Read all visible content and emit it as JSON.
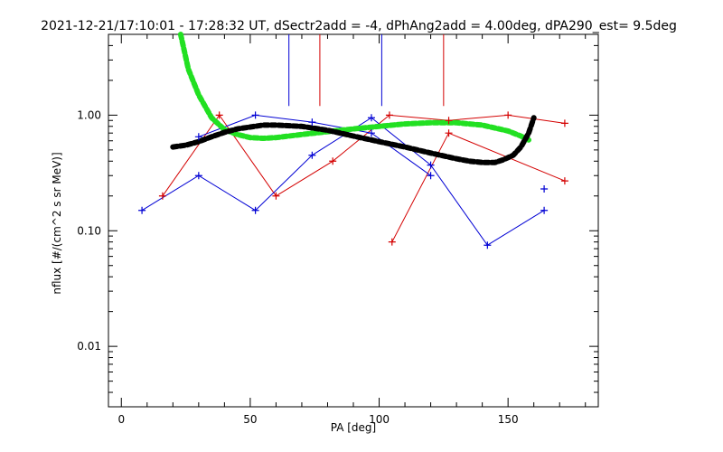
{
  "chart_data": {
    "type": "line",
    "title": "2021-12-21/17:10:01 - 17:28:32 UT, dSectr2add = -4, dPhAng2add = 4.00deg, dPA290_est=   9.5deg",
    "xlabel": "PA [deg]",
    "ylabel": "nflux [#/(cm^2 s sr MeV)]",
    "xlim": [
      -5,
      185
    ],
    "ylim": [
      0.003,
      5
    ],
    "yscale": "log",
    "xticks": [
      0,
      50,
      100,
      150
    ],
    "xtick_labels": [
      "0",
      "50",
      "100",
      "150"
    ],
    "yticks": [
      0.01,
      0.1,
      1.0
    ],
    "ytick_labels": [
      "0.01",
      "0.10",
      "1.00"
    ],
    "grid": false,
    "colors": {
      "red": "#d40000",
      "blue": "#0000d4",
      "green": "#22e022",
      "black": "#000000"
    },
    "series": [
      {
        "color": "red",
        "marker": "+",
        "x": [
          16,
          38,
          60,
          82,
          104,
          127,
          150,
          172
        ],
        "y": [
          0.2,
          1.0,
          0.2,
          0.4,
          1.0,
          0.9,
          1.0,
          0.85
        ]
      },
      {
        "color": "red",
        "marker": "+",
        "x": [
          105,
          127,
          172
        ],
        "y": [
          0.08,
          0.7,
          0.27
        ]
      },
      {
        "color": "blue",
        "marker": "+",
        "x": [
          8,
          30,
          52,
          74,
          97,
          120,
          142,
          164
        ],
        "y": [
          0.15,
          0.3,
          0.15,
          0.45,
          0.95,
          0.37,
          0.075,
          0.15
        ]
      },
      {
        "color": "blue",
        "marker": "+",
        "x": [
          30,
          52,
          74,
          97,
          120
        ],
        "y": [
          0.65,
          1.0,
          0.87,
          0.7,
          0.3
        ]
      },
      {
        "color": "blue",
        "marker": "+",
        "x": [
          164
        ],
        "y": [
          0.23
        ]
      },
      {
        "color": "green",
        "style": "thick-dashed",
        "x": [
          23,
          26,
          30,
          35,
          40,
          45,
          50,
          55,
          60,
          70,
          80,
          90,
          100,
          110,
          120,
          130,
          140,
          150,
          155,
          158
        ],
        "y": [
          5.0,
          2.5,
          1.5,
          0.95,
          0.75,
          0.68,
          0.64,
          0.63,
          0.64,
          0.68,
          0.72,
          0.76,
          0.8,
          0.84,
          0.86,
          0.86,
          0.82,
          0.73,
          0.66,
          0.61
        ]
      },
      {
        "color": "black",
        "style": "thick-dashed",
        "x": [
          20,
          25,
          30,
          35,
          40,
          45,
          50,
          55,
          60,
          70,
          80,
          90,
          100,
          110,
          120,
          130,
          135,
          140,
          145,
          148,
          152,
          155,
          158,
          160
        ],
        "y": [
          0.53,
          0.55,
          0.59,
          0.65,
          0.71,
          0.76,
          0.79,
          0.82,
          0.82,
          0.8,
          0.74,
          0.66,
          0.59,
          0.53,
          0.47,
          0.42,
          0.4,
          0.39,
          0.39,
          0.41,
          0.45,
          0.53,
          0.7,
          0.95
        ]
      }
    ],
    "vlines": [
      {
        "color": "blue",
        "x": 65,
        "y_from": 1.2
      },
      {
        "color": "red",
        "x": 77,
        "y_from": 1.2
      },
      {
        "color": "blue",
        "x": 101,
        "y_from": 1.2
      },
      {
        "color": "red",
        "x": 125,
        "y_from": 1.2
      }
    ]
  }
}
